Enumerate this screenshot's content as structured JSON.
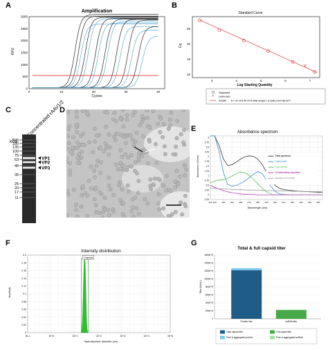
{
  "panels": {
    "a": "A",
    "b": "B",
    "c": "C",
    "d": "D",
    "e": "E",
    "f": "F",
    "g": "G"
  },
  "chart_data": [
    {
      "panel": "A",
      "type": "line",
      "title": "Amplification",
      "xlabel": "Cycles",
      "ylabel": "RFU",
      "xlim": [
        0,
        42
      ],
      "ylim": [
        0,
        3000
      ],
      "xticks": [
        0,
        10,
        20,
        30,
        40
      ],
      "yticks": [
        0,
        500,
        1000,
        1500,
        2000,
        2500,
        3000
      ],
      "threshold": 550,
      "colors": {
        "standard": "#222222",
        "unknown": "#5aa9d6",
        "threshold": "#e03030"
      },
      "series": [
        {
          "kind": "standard",
          "ct": 14.2,
          "plateau": 3050
        },
        {
          "kind": "standard",
          "ct": 15.3,
          "plateau": 2980
        },
        {
          "kind": "unknown",
          "ct": 16.0,
          "plateau": 2650
        },
        {
          "kind": "standard",
          "ct": 17.4,
          "plateau": 2930
        },
        {
          "kind": "unknown",
          "ct": 18.3,
          "plateau": 2860
        },
        {
          "kind": "standard",
          "ct": 20.6,
          "plateau": 2890
        },
        {
          "kind": "unknown",
          "ct": 21.4,
          "plateau": 2700
        },
        {
          "kind": "standard",
          "ct": 23.5,
          "plateau": 2860
        },
        {
          "kind": "unknown",
          "ct": 24.3,
          "plateau": 2780
        },
        {
          "kind": "standard",
          "ct": 27.1,
          "plateau": 2850
        },
        {
          "kind": "unknown",
          "ct": 28.2,
          "plateau": 2550
        },
        {
          "kind": "standard",
          "ct": 30.6,
          "plateau": 2820
        },
        {
          "kind": "unknown",
          "ct": 31.7,
          "plateau": 2400
        },
        {
          "kind": "standard",
          "ct": 33.8,
          "plateau": 2550
        },
        {
          "kind": "unknown",
          "ct": 35.0,
          "plateau": 2150
        }
      ]
    },
    {
      "panel": "B",
      "type": "scatter",
      "title": "Standard Curve",
      "xlabel": "Log Starting Quantity",
      "ylabel": "Cq",
      "xlim": [
        2.2,
        7.4
      ],
      "ylim": [
        9,
        29
      ],
      "xticks": [
        3,
        4,
        5,
        6,
        7
      ],
      "yticks": [
        10,
        15,
        20,
        25
      ],
      "standard_x": [
        2.5,
        3.3,
        4.3,
        5.3,
        6.3,
        7.2
      ],
      "standard_y": [
        27.8,
        24.6,
        21.2,
        17.7,
        14.2,
        10.9
      ],
      "unknown_x": [
        6.8
      ],
      "unknown_y": [
        12.9
      ],
      "fit": {
        "x": [
          2.5,
          7.3
        ],
        "y": [
          27.9,
          10.6
        ]
      },
      "legend": {
        "standard": "Standard",
        "unknown": "Unknown",
        "fit_label": "SYBR",
        "equation": "E= 97.0% R^2=0.998 Slope=-3.396 y-int=35.877"
      },
      "colors": {
        "point": "#e05050",
        "fit": "#e05050"
      }
    },
    {
      "panel": "C",
      "type": "table",
      "header": "Concentrated rAAV1/2",
      "unit": "kDa",
      "ladder": [
        "245",
        "180",
        "135",
        "100",
        "75",
        "63",
        "48",
        "35",
        "25",
        "20",
        "17",
        "11"
      ],
      "bands": [
        "VP1",
        "VP2",
        "VP3"
      ]
    },
    {
      "panel": "E",
      "type": "line",
      "title": "Absorbance spectrum",
      "xlabel": "Wavelength (nm)",
      "ylabel": "Absorbance (10mm)",
      "xlim": [
        225,
        355
      ],
      "ylim": [
        -0.25,
        3.1
      ],
      "xticks": [
        225,
        230,
        240,
        250,
        260,
        270,
        280,
        290,
        300,
        310,
        320,
        330,
        340,
        350
      ],
      "yticks": [
        -0.25,
        0,
        0.25,
        0.5,
        0.75,
        1,
        1.25,
        1.5,
        1.75,
        2,
        2.25,
        2.5,
        2.75,
        3
      ],
      "x": [
        225,
        230,
        235,
        240,
        245,
        250,
        255,
        260,
        265,
        270,
        275,
        280,
        285,
        290,
        295,
        300,
        305,
        310,
        320,
        330,
        340,
        350,
        355
      ],
      "series": [
        {
          "name": "Total spectrum",
          "color": "#333333",
          "values": [
            3.1,
            3.1,
            2.6,
            1.9,
            1.55,
            1.58,
            1.72,
            1.88,
            2.0,
            2.05,
            2.02,
            1.88,
            1.6,
            1.2,
            0.8,
            0.5,
            0.34,
            0.28,
            0.22,
            0.18,
            0.16,
            0.14,
            0.13
          ]
        },
        {
          "name": "Total protein",
          "color": "#3a8fc8",
          "values": [
            3.1,
            3.1,
            2.3,
            1.2,
            0.55,
            0.45,
            0.5,
            0.6,
            0.72,
            0.9,
            1.08,
            1.22,
            1.12,
            0.8,
            0.45,
            0.18,
            0.05,
            0.02,
            0.0,
            0.0,
            0.0,
            0.0,
            0.0
          ]
        },
        {
          "name": "Total ssDNA",
          "color": "#5cc45c",
          "values": [
            0.62,
            0.72,
            0.78,
            0.8,
            0.86,
            0.98,
            1.12,
            1.2,
            1.16,
            1.02,
            0.82,
            0.58,
            0.35,
            0.16,
            0.05,
            0.0,
            0.0,
            0.0,
            0.0,
            0.0,
            0.0,
            0.0,
            0.0
          ]
        },
        {
          "name": "UV-absorbing impurities",
          "color": "#b43cb4",
          "values": [
            0.5,
            0.4,
            0.3,
            0.22,
            0.16,
            0.11,
            0.08,
            0.05,
            0.03,
            0.02,
            0.01,
            0.0,
            0.0,
            0.0,
            0.0,
            0.0,
            0.0,
            0.0,
            0.0,
            0.0,
            0.0,
            0.0,
            0.0
          ]
        },
        {
          "name": "Background turbidity",
          "color": "#999999",
          "values": [
            0.36,
            0.34,
            0.32,
            0.31,
            0.3,
            0.29,
            0.28,
            0.27,
            0.26,
            0.25,
            0.24,
            0.24,
            0.23,
            0.22,
            0.22,
            0.21,
            0.2,
            0.2,
            0.19,
            0.18,
            0.17,
            0.17,
            0.16
          ]
        }
      ]
    },
    {
      "panel": "F",
      "type": "bar",
      "title": "Intensity distribution",
      "xlabel": "Hydrodynamic diameter (nm)",
      "ylabel": "Amplitude",
      "xscale": "log",
      "xlim": [
        0.1,
        100000
      ],
      "ylim": [
        0,
        0.2
      ],
      "xticks": [
        0.1,
        1,
        10,
        100,
        1000,
        10000,
        100000
      ],
      "xtick_labels": [
        "1E-1",
        "1E+0",
        "1E+1",
        "1E+2",
        "1E+3",
        "1E+4",
        "1E+5"
      ],
      "yticks": [
        0,
        0.02,
        0.04,
        0.06,
        0.08,
        0.1,
        0.12,
        0.14,
        0.16,
        0.18,
        0.2
      ],
      "peak_label": "Capsids",
      "peak_x": [
        18,
        19,
        20,
        21,
        22,
        23,
        24,
        25,
        26,
        27,
        28,
        29,
        30,
        31,
        32,
        33,
        34,
        35
      ],
      "peak_y": [
        0.0,
        0.008,
        0.025,
        0.06,
        0.11,
        0.16,
        0.19,
        0.195,
        0.185,
        0.155,
        0.115,
        0.075,
        0.042,
        0.02,
        0.008,
        0.003,
        0.0,
        0.0
      ],
      "color": "#2fbf2f"
    },
    {
      "panel": "G",
      "type": "bar",
      "title": "Total & full capsid titer",
      "ylabel": "Titer (#/mL)",
      "ylim": [
        0,
        1600000000000.0
      ],
      "yticks": [
        0,
        200000000000.0,
        400000000000.0,
        600000000000.0,
        800000000000.0,
        1000000000000.0,
        1200000000000.0,
        1400000000000.0,
        1600000000000.0
      ],
      "ytick_labels": [
        "0",
        "200E+9",
        "400E+9",
        "600E+9",
        "800E+9",
        "1000E+9",
        "1200E+9",
        "1400E+9",
        "1600E+9"
      ],
      "categories": [
        "Protein titer",
        "ssDNA titer"
      ],
      "series": [
        {
          "name": "Total capsid titer",
          "color": "#1f5b87",
          "values": [
            1220000000000.0,
            0
          ]
        },
        {
          "name": "Free & aggregated protein",
          "color": "#7cc8ee",
          "values": [
            50000000000.0,
            0
          ]
        },
        {
          "name": "Full capsid titer",
          "color": "#46a846",
          "values": [
            0,
            220000000000.0
          ]
        },
        {
          "name": "Free & aggregated ssDNA",
          "color": "#9de39d",
          "values": [
            0,
            10000000000.0
          ]
        }
      ]
    }
  ]
}
